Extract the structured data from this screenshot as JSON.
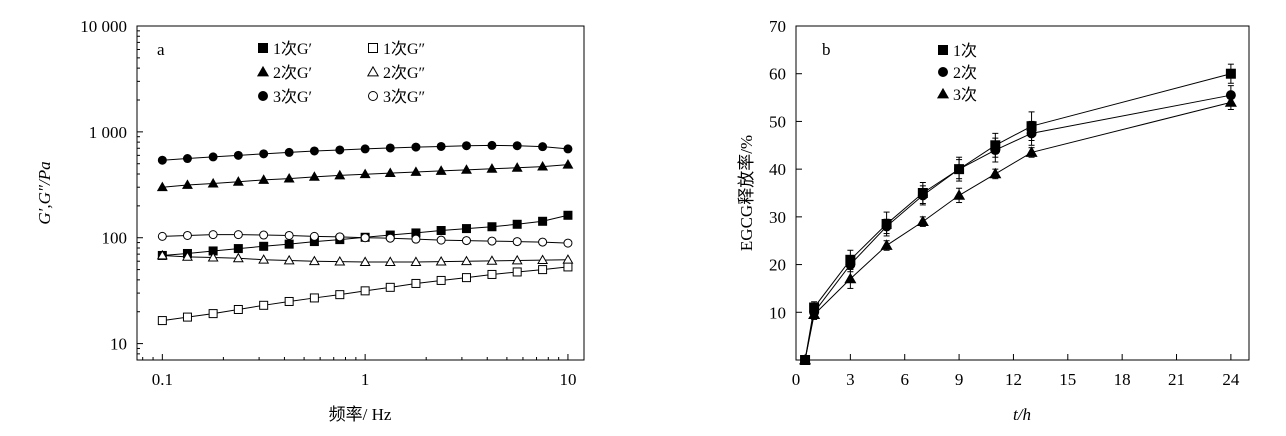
{
  "chart_data": [
    {
      "panel_label": "a",
      "type": "scatter",
      "x_scale": "log",
      "y_scale": "log",
      "xlim": [
        0.075,
        12
      ],
      "ylim": [
        7,
        10000
      ],
      "xlabel": "频率/ Hz",
      "ylabel": "G′,G″/Pa",
      "x_ticks": [
        {
          "value": 0.1,
          "label": "0.1"
        },
        {
          "value": 1,
          "label": "1"
        },
        {
          "value": 10,
          "label": "10"
        }
      ],
      "y_ticks": [
        {
          "value": 10,
          "label": "10"
        },
        {
          "value": 100,
          "label": "100"
        },
        {
          "value": 1000,
          "label": "1 000"
        },
        {
          "value": 10000,
          "label": "10 000"
        }
      ],
      "legend_position": "top-center",
      "legend_layout": [
        [
          0,
          1
        ],
        [
          2,
          3
        ],
        [
          4,
          5
        ]
      ],
      "x": [
        0.1,
        0.133,
        0.178,
        0.237,
        0.316,
        0.422,
        0.562,
        0.75,
        1.0,
        1.33,
        1.78,
        2.37,
        3.16,
        4.22,
        5.62,
        7.5,
        10.0
      ],
      "series": [
        {
          "name": "1次G′",
          "marker": "square",
          "filled": true,
          "values": [
            68,
            71,
            75,
            79,
            83,
            87,
            92,
            96,
            101,
            106,
            111,
            117,
            122,
            127,
            134,
            143,
            163
          ]
        },
        {
          "name": "1次G″",
          "marker": "square",
          "filled": false,
          "values": [
            16.5,
            17.8,
            19.2,
            21,
            23,
            25,
            27,
            29,
            31.5,
            34,
            37,
            39.5,
            42,
            45,
            47.5,
            50,
            53
          ]
        },
        {
          "name": "2次G′",
          "marker": "triangle",
          "filled": true,
          "values": [
            300,
            315,
            325,
            338,
            352,
            362,
            376,
            388,
            398,
            408,
            418,
            428,
            438,
            448,
            458,
            470,
            490
          ]
        },
        {
          "name": "2次G″",
          "marker": "triangle",
          "filled": false,
          "values": [
            68,
            66,
            65,
            64,
            62,
            61,
            60,
            59.5,
            59,
            59,
            59,
            59.5,
            60,
            60.5,
            61,
            61.5,
            62
          ]
        },
        {
          "name": "3次G′",
          "marker": "circle",
          "filled": true,
          "values": [
            540,
            560,
            580,
            600,
            620,
            640,
            660,
            675,
            690,
            705,
            718,
            728,
            740,
            745,
            740,
            725,
            690
          ]
        },
        {
          "name": "3次G″",
          "marker": "circle",
          "filled": false,
          "values": [
            103,
            105,
            107,
            107,
            106,
            105,
            103,
            102,
            100,
            99,
            97,
            95,
            94,
            93,
            92,
            91,
            89
          ]
        }
      ]
    },
    {
      "panel_label": "b",
      "type": "line",
      "xlim": [
        0,
        25
      ],
      "ylim": [
        0,
        70
      ],
      "xlabel": "t/h",
      "ylabel": "EGCG释放率/%",
      "x_ticks": [
        {
          "value": 0,
          "label": "0"
        },
        {
          "value": 3,
          "label": "3"
        },
        {
          "value": 6,
          "label": "6"
        },
        {
          "value": 9,
          "label": "9"
        },
        {
          "value": 12,
          "label": "12"
        },
        {
          "value": 15,
          "label": "15"
        },
        {
          "value": 18,
          "label": "18"
        },
        {
          "value": 21,
          "label": "21"
        },
        {
          "value": 24,
          "label": "24"
        }
      ],
      "y_ticks": [
        {
          "value": 10,
          "label": "10"
        },
        {
          "value": 20,
          "label": "20"
        },
        {
          "value": 30,
          "label": "30"
        },
        {
          "value": 40,
          "label": "40"
        },
        {
          "value": 50,
          "label": "50"
        },
        {
          "value": 60,
          "label": "60"
        },
        {
          "value": 70,
          "label": "70"
        }
      ],
      "legend_position": "top-left",
      "x": [
        0.5,
        1,
        3,
        5,
        7,
        9,
        11,
        13,
        24
      ],
      "series": [
        {
          "name": "1次",
          "marker": "square",
          "filled": true,
          "values": [
            0,
            11,
            21,
            28.5,
            35,
            40,
            45,
            49,
            60
          ],
          "errors": [
            0.3,
            1.2,
            2,
            2.5,
            2.2,
            2.5,
            2.5,
            3,
            2
          ]
        },
        {
          "name": "2次",
          "marker": "circle",
          "filled": true,
          "values": [
            0,
            10,
            20,
            28,
            34.5,
            40,
            44,
            47.5,
            55.5
          ],
          "errors": [
            0.3,
            1,
            1.5,
            1.5,
            2,
            2,
            2.5,
            2.5,
            2
          ]
        },
        {
          "name": "3次",
          "marker": "triangle",
          "filled": true,
          "values": [
            0,
            9.5,
            17,
            24,
            29,
            34.5,
            39,
            43.5,
            54
          ],
          "errors": [
            0.3,
            1,
            2,
            1,
            1,
            1.5,
            1,
            1,
            1.5
          ]
        }
      ]
    }
  ]
}
